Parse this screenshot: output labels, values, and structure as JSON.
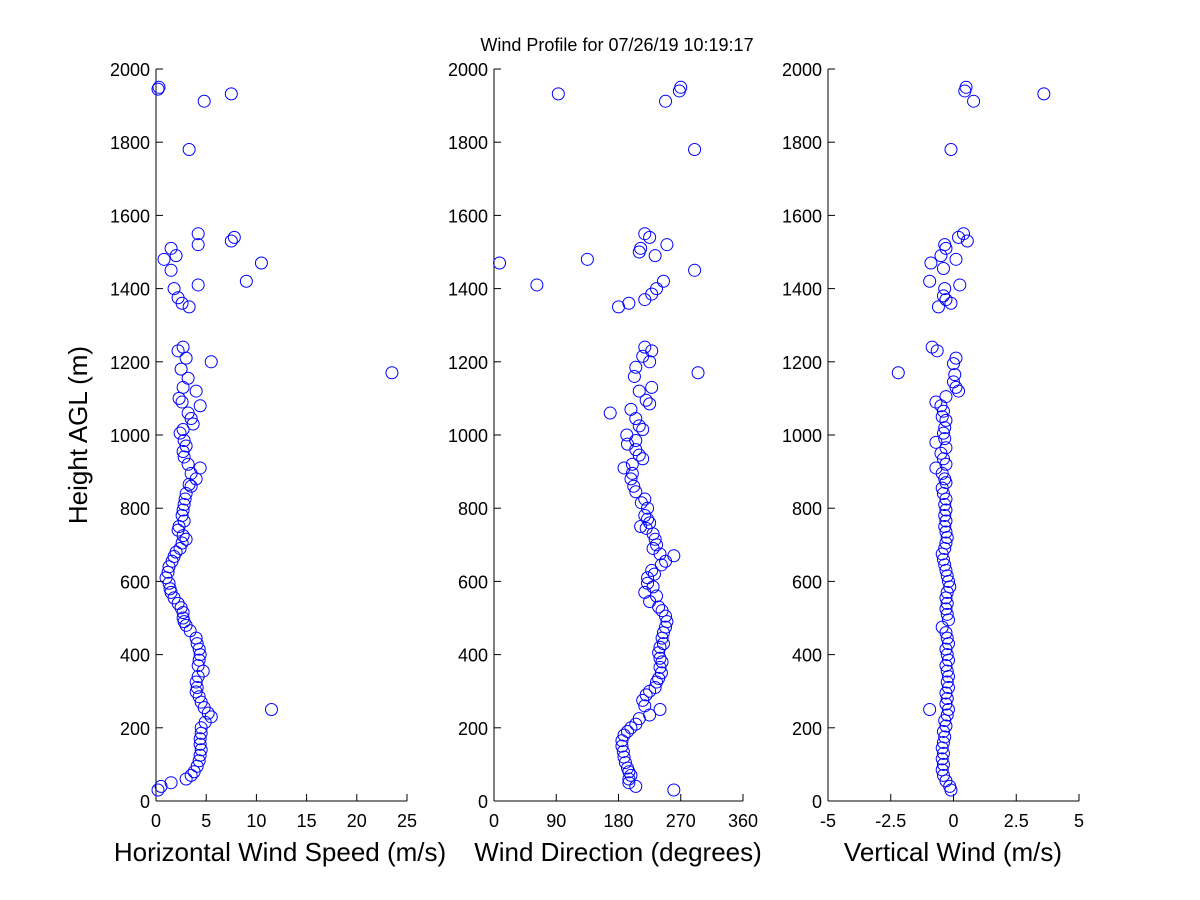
{
  "title": "Wind Profile for  07/26/19 10:19:17",
  "marker_color": "#0000ff",
  "axis_color": "#000000",
  "chart_data": [
    {
      "type": "scatter",
      "id": "speed",
      "xlabel": "Horizontal Wind Speed (m/s)",
      "ylabel": "Height AGL (m)",
      "xlim": [
        0,
        25
      ],
      "ylim": [
        0,
        2000
      ],
      "xticks": [
        0,
        5,
        10,
        15,
        20,
        25
      ],
      "xtick_labels": [
        "0",
        "5",
        "10",
        "15",
        "20",
        "25"
      ],
      "yticks": [
        0,
        200,
        400,
        600,
        800,
        1000,
        1200,
        1400,
        1600,
        1800,
        2000
      ],
      "ytick_labels": [
        "0",
        "200",
        "400",
        "600",
        "800",
        "1000",
        "1200",
        "1400",
        "1600",
        "1800",
        "2000"
      ],
      "points": [
        [
          0.3,
          1950
        ],
        [
          0.2,
          1945
        ],
        [
          4.8,
          1912
        ],
        [
          7.5,
          1932
        ],
        [
          3.3,
          1780
        ],
        [
          4.2,
          1550
        ],
        [
          7.5,
          1530
        ],
        [
          7.8,
          1540
        ],
        [
          4.2,
          1520
        ],
        [
          1.5,
          1510
        ],
        [
          2.0,
          1490
        ],
        [
          0.8,
          1480
        ],
        [
          10.5,
          1470
        ],
        [
          1.5,
          1450
        ],
        [
          4.2,
          1410
        ],
        [
          9.0,
          1420
        ],
        [
          1.8,
          1400
        ],
        [
          2.2,
          1375
        ],
        [
          2.6,
          1360
        ],
        [
          3.3,
          1350
        ],
        [
          2.7,
          1240
        ],
        [
          2.2,
          1230
        ],
        [
          3.0,
          1210
        ],
        [
          5.5,
          1200
        ],
        [
          2.5,
          1180
        ],
        [
          23.5,
          1170
        ],
        [
          3.2,
          1155
        ],
        [
          2.7,
          1130
        ],
        [
          4.0,
          1120
        ],
        [
          2.3,
          1100
        ],
        [
          2.6,
          1090
        ],
        [
          4.4,
          1080
        ],
        [
          3.2,
          1060
        ],
        [
          3.5,
          1045
        ],
        [
          3.7,
          1030
        ],
        [
          2.7,
          1015
        ],
        [
          2.4,
          1005
        ],
        [
          2.8,
          985
        ],
        [
          3.0,
          970
        ],
        [
          2.7,
          955
        ],
        [
          2.8,
          940
        ],
        [
          3.2,
          920
        ],
        [
          4.4,
          910
        ],
        [
          3.5,
          895
        ],
        [
          4.0,
          880
        ],
        [
          3.3,
          865
        ],
        [
          3.5,
          860
        ],
        [
          3.0,
          840
        ],
        [
          2.9,
          825
        ],
        [
          2.8,
          810
        ],
        [
          2.7,
          795
        ],
        [
          2.6,
          780
        ],
        [
          2.8,
          765
        ],
        [
          2.3,
          750
        ],
        [
          2.2,
          740
        ],
        [
          2.7,
          725
        ],
        [
          3.0,
          715
        ],
        [
          2.6,
          705
        ],
        [
          2.4,
          690
        ],
        [
          2.0,
          680
        ],
        [
          1.8,
          668
        ],
        [
          1.6,
          655
        ],
        [
          1.3,
          640
        ],
        [
          1.2,
          625
        ],
        [
          1.0,
          610
        ],
        [
          1.3,
          595
        ],
        [
          1.4,
          580
        ],
        [
          1.5,
          570
        ],
        [
          1.8,
          555
        ],
        [
          2.2,
          540
        ],
        [
          2.5,
          528
        ],
        [
          2.7,
          515
        ],
        [
          2.7,
          500
        ],
        [
          2.8,
          490
        ],
        [
          3.0,
          480
        ],
        [
          3.4,
          465
        ],
        [
          4.0,
          445
        ],
        [
          4.1,
          430
        ],
        [
          4.3,
          415
        ],
        [
          4.4,
          400
        ],
        [
          4.3,
          385
        ],
        [
          4.2,
          370
        ],
        [
          4.7,
          355
        ],
        [
          4.2,
          340
        ],
        [
          4.0,
          325
        ],
        [
          4.1,
          310
        ],
        [
          4.0,
          298
        ],
        [
          4.3,
          285
        ],
        [
          4.5,
          270
        ],
        [
          4.8,
          255
        ],
        [
          11.5,
          250
        ],
        [
          5.2,
          240
        ],
        [
          5.5,
          230
        ],
        [
          4.9,
          215
        ],
        [
          4.5,
          200
        ],
        [
          4.5,
          185
        ],
        [
          4.4,
          170
        ],
        [
          4.4,
          155
        ],
        [
          4.5,
          140
        ],
        [
          4.4,
          125
        ],
        [
          4.3,
          110
        ],
        [
          4.1,
          95
        ],
        [
          3.8,
          80
        ],
        [
          3.5,
          70
        ],
        [
          3.0,
          60
        ],
        [
          1.5,
          50
        ],
        [
          0.5,
          40
        ],
        [
          0.2,
          30
        ]
      ]
    },
    {
      "type": "scatter",
      "id": "direction",
      "xlabel": "Wind Direction (degrees)",
      "ylabel": "",
      "xlim": [
        0,
        360
      ],
      "ylim": [
        0,
        2000
      ],
      "xticks": [
        0,
        90,
        180,
        270,
        360
      ],
      "xtick_labels": [
        "0",
        "90",
        "180",
        "270",
        "360"
      ],
      "yticks": [
        0,
        200,
        400,
        600,
        800,
        1000,
        1200,
        1400,
        1600,
        1800,
        2000
      ],
      "ytick_labels": [
        "0",
        "200",
        "400",
        "600",
        "800",
        "1000",
        "1200",
        "1400",
        "1600",
        "1800",
        "2000"
      ],
      "points": [
        [
          270,
          1950
        ],
        [
          268,
          1940
        ],
        [
          248,
          1912
        ],
        [
          93,
          1932
        ],
        [
          290,
          1780
        ],
        [
          218,
          1550
        ],
        [
          225,
          1540
        ],
        [
          250,
          1520
        ],
        [
          212,
          1510
        ],
        [
          210,
          1500
        ],
        [
          233,
          1490
        ],
        [
          135,
          1480
        ],
        [
          8,
          1470
        ],
        [
          290,
          1450
        ],
        [
          245,
          1420
        ],
        [
          62,
          1410
        ],
        [
          235,
          1400
        ],
        [
          228,
          1385
        ],
        [
          218,
          1370
        ],
        [
          195,
          1360
        ],
        [
          180,
          1350
        ],
        [
          218,
          1240
        ],
        [
          228,
          1230
        ],
        [
          215,
          1215
        ],
        [
          225,
          1200
        ],
        [
          205,
          1185
        ],
        [
          295,
          1170
        ],
        [
          203,
          1160
        ],
        [
          228,
          1130
        ],
        [
          210,
          1120
        ],
        [
          220,
          1095
        ],
        [
          225,
          1085
        ],
        [
          168,
          1060
        ],
        [
          198,
          1070
        ],
        [
          205,
          1045
        ],
        [
          210,
          1025
        ],
        [
          215,
          1015
        ],
        [
          192,
          1000
        ],
        [
          205,
          985
        ],
        [
          193,
          975
        ],
        [
          205,
          960
        ],
        [
          210,
          945
        ],
        [
          215,
          935
        ],
        [
          200,
          920
        ],
        [
          188,
          910
        ],
        [
          200,
          895
        ],
        [
          198,
          880
        ],
        [
          202,
          860
        ],
        [
          205,
          845
        ],
        [
          218,
          825
        ],
        [
          213,
          815
        ],
        [
          222,
          800
        ],
        [
          218,
          780
        ],
        [
          222,
          770
        ],
        [
          225,
          760
        ],
        [
          220,
          745
        ],
        [
          212,
          750
        ],
        [
          230,
          730
        ],
        [
          233,
          715
        ],
        [
          235,
          700
        ],
        [
          230,
          690
        ],
        [
          240,
          675
        ],
        [
          260,
          670
        ],
        [
          248,
          655
        ],
        [
          242,
          645
        ],
        [
          228,
          630
        ],
        [
          232,
          620
        ],
        [
          222,
          610
        ],
        [
          222,
          595
        ],
        [
          230,
          585
        ],
        [
          218,
          570
        ],
        [
          235,
          560
        ],
        [
          225,
          545
        ],
        [
          238,
          530
        ],
        [
          243,
          520
        ],
        [
          248,
          505
        ],
        [
          250,
          490
        ],
        [
          248,
          475
        ],
        [
          245,
          460
        ],
        [
          243,
          445
        ],
        [
          245,
          430
        ],
        [
          240,
          420
        ],
        [
          238,
          405
        ],
        [
          240,
          390
        ],
        [
          243,
          380
        ],
        [
          240,
          365
        ],
        [
          242,
          350
        ],
        [
          238,
          335
        ],
        [
          235,
          325
        ],
        [
          233,
          310
        ],
        [
          225,
          300
        ],
        [
          220,
          290
        ],
        [
          215,
          275
        ],
        [
          218,
          260
        ],
        [
          240,
          250
        ],
        [
          225,
          235
        ],
        [
          210,
          225
        ],
        [
          205,
          210
        ],
        [
          198,
          200
        ],
        [
          193,
          190
        ],
        [
          188,
          180
        ],
        [
          185,
          165
        ],
        [
          185,
          150
        ],
        [
          187,
          135
        ],
        [
          188,
          120
        ],
        [
          190,
          105
        ],
        [
          193,
          90
        ],
        [
          195,
          80
        ],
        [
          198,
          70
        ],
        [
          195,
          60
        ],
        [
          195,
          50
        ],
        [
          205,
          40
        ],
        [
          260,
          30
        ]
      ]
    },
    {
      "type": "scatter",
      "id": "vertical",
      "xlabel": "Vertical Wind (m/s)",
      "ylabel": "",
      "xlim": [
        -5,
        5
      ],
      "ylim": [
        0,
        2000
      ],
      "xticks": [
        -5,
        -2.5,
        0,
        2.5,
        5
      ],
      "xtick_labels": [
        "-5",
        "-2.5",
        "0",
        "2.5",
        "5"
      ],
      "yticks": [
        0,
        200,
        400,
        600,
        800,
        1000,
        1200,
        1400,
        1600,
        1800,
        2000
      ],
      "ytick_labels": [
        "0",
        "200",
        "400",
        "600",
        "800",
        "1000",
        "1200",
        "1400",
        "1600",
        "1800",
        "2000"
      ],
      "points": [
        [
          0.5,
          1950
        ],
        [
          0.45,
          1940
        ],
        [
          0.8,
          1912
        ],
        [
          3.6,
          1932
        ],
        [
          -0.1,
          1780
        ],
        [
          0.4,
          1550
        ],
        [
          0.2,
          1540
        ],
        [
          0.55,
          1530
        ],
        [
          -0.35,
          1520
        ],
        [
          -0.3,
          1510
        ],
        [
          -0.5,
          1490
        ],
        [
          0.1,
          1480
        ],
        [
          -0.9,
          1470
        ],
        [
          -0.4,
          1455
        ],
        [
          -0.95,
          1420
        ],
        [
          0.25,
          1410
        ],
        [
          -0.35,
          1400
        ],
        [
          -0.4,
          1380
        ],
        [
          -0.3,
          1370
        ],
        [
          -0.1,
          1360
        ],
        [
          -0.6,
          1350
        ],
        [
          -0.85,
          1240
        ],
        [
          -0.65,
          1230
        ],
        [
          0.1,
          1210
        ],
        [
          0.0,
          1195
        ],
        [
          -2.2,
          1170
        ],
        [
          0.05,
          1165
        ],
        [
          0.0,
          1145
        ],
        [
          0.1,
          1130
        ],
        [
          0.2,
          1120
        ],
        [
          -0.3,
          1105
        ],
        [
          -0.7,
          1090
        ],
        [
          -0.5,
          1080
        ],
        [
          -0.4,
          1065
        ],
        [
          -0.45,
          1050
        ],
        [
          -0.3,
          1040
        ],
        [
          -0.35,
          1020
        ],
        [
          -0.4,
          1005
        ],
        [
          -0.35,
          990
        ],
        [
          -0.7,
          980
        ],
        [
          -0.3,
          965
        ],
        [
          -0.5,
          950
        ],
        [
          -0.4,
          935
        ],
        [
          -0.3,
          920
        ],
        [
          -0.7,
          910
        ],
        [
          -0.45,
          895
        ],
        [
          -0.35,
          880
        ],
        [
          -0.3,
          870
        ],
        [
          -0.45,
          855
        ],
        [
          -0.4,
          840
        ],
        [
          -0.3,
          825
        ],
        [
          -0.35,
          810
        ],
        [
          -0.3,
          795
        ],
        [
          -0.35,
          780
        ],
        [
          -0.3,
          765
        ],
        [
          -0.35,
          750
        ],
        [
          -0.3,
          735
        ],
        [
          -0.25,
          720
        ],
        [
          -0.3,
          705
        ],
        [
          -0.35,
          690
        ],
        [
          -0.45,
          675
        ],
        [
          -0.4,
          660
        ],
        [
          -0.35,
          645
        ],
        [
          -0.3,
          630
        ],
        [
          -0.25,
          615
        ],
        [
          -0.2,
          600
        ],
        [
          -0.15,
          585
        ],
        [
          -0.25,
          570
        ],
        [
          -0.3,
          555
        ],
        [
          -0.25,
          540
        ],
        [
          -0.3,
          525
        ],
        [
          -0.25,
          510
        ],
        [
          -0.2,
          495
        ],
        [
          -0.45,
          475
        ],
        [
          -0.3,
          460
        ],
        [
          -0.25,
          445
        ],
        [
          -0.2,
          430
        ],
        [
          -0.3,
          415
        ],
        [
          -0.25,
          400
        ],
        [
          -0.2,
          385
        ],
        [
          -0.3,
          370
        ],
        [
          -0.25,
          355
        ],
        [
          -0.2,
          340
        ],
        [
          -0.25,
          325
        ],
        [
          -0.2,
          310
        ],
        [
          -0.3,
          295
        ],
        [
          -0.25,
          280
        ],
        [
          -0.3,
          265
        ],
        [
          -0.2,
          250
        ],
        [
          -0.95,
          250
        ],
        [
          -0.25,
          235
        ],
        [
          -0.35,
          220
        ],
        [
          -0.3,
          205
        ],
        [
          -0.4,
          190
        ],
        [
          -0.35,
          175
        ],
        [
          -0.4,
          160
        ],
        [
          -0.45,
          145
        ],
        [
          -0.4,
          130
        ],
        [
          -0.45,
          115
        ],
        [
          -0.4,
          100
        ],
        [
          -0.45,
          85
        ],
        [
          -0.4,
          70
        ],
        [
          -0.3,
          55
        ],
        [
          -0.15,
          40
        ],
        [
          -0.1,
          30
        ]
      ]
    }
  ]
}
